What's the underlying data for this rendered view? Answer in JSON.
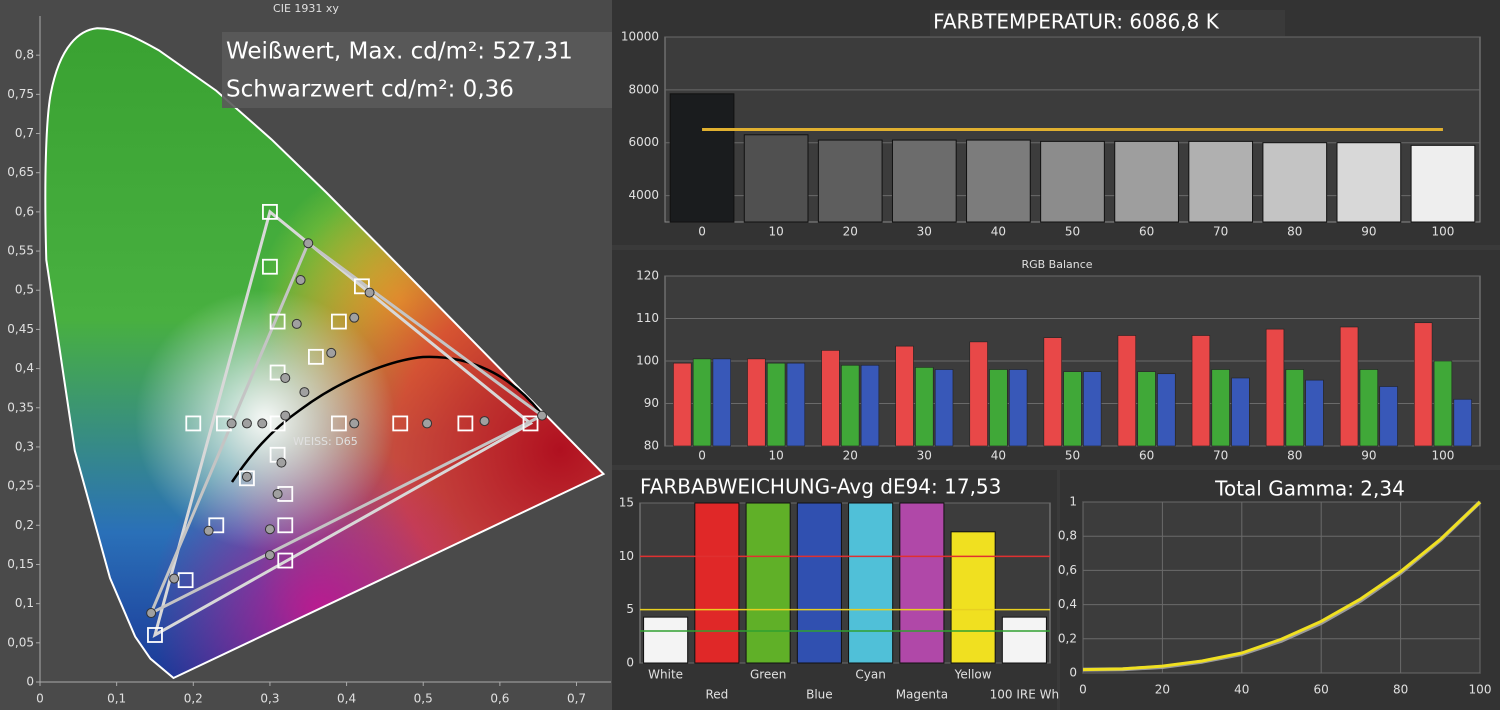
{
  "chart_data": [
    {
      "type": "scatter",
      "title": "CIE 1931 xy",
      "annotations": [
        "Weißwert, Max. cd/m²: 527,31",
        "Schwarzwert cd/m²: 0,36",
        "WEISS: D65"
      ],
      "xlim": [
        0,
        0.745
      ],
      "ylim": [
        0,
        0.85
      ],
      "xticks": [
        0,
        {
          "value": 0.1,
          "label": "0,1"
        },
        {
          "value": 0.2,
          "label": "0,2"
        },
        {
          "value": 0.3,
          "label": "0,3"
        },
        {
          "value": 0.4,
          "label": "0,4"
        },
        {
          "value": 0.5,
          "label": "0,5"
        },
        {
          "value": 0.6,
          "label": "0,6"
        },
        {
          "value": 0.7,
          "label": "0,7"
        }
      ],
      "yticks": [
        0,
        {
          "value": 0.05,
          "label": "0,05"
        },
        {
          "value": 0.1,
          "label": "0,1"
        },
        {
          "value": 0.15,
          "label": "0,15"
        },
        {
          "value": 0.2,
          "label": "0,2"
        },
        {
          "value": 0.25,
          "label": "0,25"
        },
        {
          "value": 0.3,
          "label": "0,3"
        },
        {
          "value": 0.35,
          "label": "0,35"
        },
        {
          "value": 0.4,
          "label": "0,4"
        },
        {
          "value": 0.45,
          "label": "0,45"
        },
        {
          "value": 0.5,
          "label": "0,5"
        },
        {
          "value": 0.55,
          "label": "0,55"
        },
        {
          "value": 0.6,
          "label": "0,6"
        },
        {
          "value": 0.65,
          "label": "0,65"
        },
        {
          "value": 0.7,
          "label": "0,7"
        },
        {
          "value": 0.75,
          "label": "0,75"
        },
        {
          "value": 0.8,
          "label": "0,8"
        }
      ],
      "polygons": [
        {
          "color": "#d8d8d8",
          "x": [
            0.64,
            0.3,
            0.15
          ],
          "y": [
            0.33,
            0.6,
            0.06
          ]
        },
        {
          "color": "#c4c4c4",
          "x": [
            0.655,
            0.35,
            0.145
          ],
          "y": [
            0.34,
            0.56,
            0.088
          ]
        }
      ],
      "series": [
        {
          "marker": "square",
          "color": "#ffffff",
          "x": [
            0.3,
            0.3,
            0.31,
            0.39,
            0.42,
            0.36,
            0.31,
            0.2,
            0.24,
            0.31,
            0.39,
            0.47,
            0.555,
            0.64,
            0.27,
            0.31,
            0.32,
            0.23,
            0.32,
            0.32,
            0.19,
            0.15
          ],
          "y": [
            0.6,
            0.53,
            0.46,
            0.46,
            0.505,
            0.415,
            0.395,
            0.33,
            0.33,
            0.33,
            0.33,
            0.33,
            0.33,
            0.33,
            0.26,
            0.29,
            0.24,
            0.2,
            0.2,
            0.155,
            0.13,
            0.06
          ]
        },
        {
          "marker": "circle",
          "color": "#a0a0a0",
          "x": [
            0.35,
            0.34,
            0.43,
            0.41,
            0.335,
            0.38,
            0.32,
            0.345,
            0.32,
            0.25,
            0.27,
            0.29,
            0.41,
            0.505,
            0.58,
            0.655,
            0.27,
            0.315,
            0.31,
            0.3,
            0.22,
            0.3,
            0.175,
            0.145
          ],
          "y": [
            0.56,
            0.513,
            0.497,
            0.465,
            0.457,
            0.42,
            0.388,
            0.37,
            0.34,
            0.33,
            0.33,
            0.33,
            0.33,
            0.33,
            0.333,
            0.34,
            0.262,
            0.28,
            0.24,
            0.195,
            0.193,
            0.162,
            0.132,
            0.088
          ]
        }
      ]
    },
    {
      "type": "bar",
      "title": "FARBTEMPERATUR: 6086,8 K",
      "categories": [
        "0",
        "10",
        "20",
        "30",
        "40",
        "50",
        "60",
        "70",
        "80",
        "90",
        "100"
      ],
      "values": [
        7850,
        6300,
        6100,
        6100,
        6100,
        6050,
        6050,
        6050,
        6000,
        6000,
        5900
      ],
      "colors": [
        "#1a1c1e",
        "#505050",
        "#5e5e5e",
        "#6c6c6c",
        "#7c7c7c",
        "#8c8c8c",
        "#9e9e9e",
        "#b0b0b0",
        "#c4c4c4",
        "#d8d8d8",
        "#eeeeee"
      ],
      "ylim": [
        3000,
        10000
      ],
      "yticks": [
        4000,
        6000,
        8000,
        10000
      ],
      "grid": true,
      "reference_lines": [
        {
          "value": 6500,
          "color": "#e0b030"
        }
      ]
    },
    {
      "type": "bar",
      "title": "RGB Balance",
      "categories": [
        "0",
        "10",
        "20",
        "30",
        "40",
        "50",
        "60",
        "70",
        "80",
        "90",
        "100"
      ],
      "series": [
        {
          "color": "#e84848",
          "values": [
            99.5,
            100.5,
            102.5,
            103.5,
            104.5,
            105.5,
            106,
            106,
            107.5,
            108,
            109
          ]
        },
        {
          "color": "#40a838",
          "values": [
            100.5,
            99.5,
            99,
            98.5,
            98,
            97.5,
            97.5,
            98,
            98,
            98,
            100
          ]
        },
        {
          "color": "#3858b8",
          "values": [
            100.5,
            99.5,
            99,
            98,
            98,
            97.5,
            97,
            96,
            95.5,
            94,
            91
          ]
        }
      ],
      "ylim": [
        80,
        120
      ],
      "yticks": [
        80,
        90,
        100,
        110,
        120
      ],
      "grid": true
    },
    {
      "type": "bar",
      "title": "FARBABWEICHUNG-Avg dE94: 17,53",
      "categories": [
        "White",
        "Red",
        "Green",
        "Blue",
        "Cyan",
        "Magenta",
        "Yellow",
        "100 IRE Wh"
      ],
      "values": [
        4.3,
        15,
        15,
        15,
        15,
        15,
        12.3,
        4.3
      ],
      "colors": [
        "#f4f4f4",
        "#e02828",
        "#60b028",
        "#3050b0",
        "#50c0d8",
        "#b048a8",
        "#f0e020",
        "#f4f4f4"
      ],
      "ylim": [
        0,
        15
      ],
      "yticks": [
        0,
        5,
        10,
        15
      ],
      "grid": true,
      "reference_lines": [
        {
          "value": 10,
          "color": "#e03030"
        },
        {
          "value": 5,
          "color": "#e8d020"
        },
        {
          "value": 3,
          "color": "#30a030"
        }
      ]
    },
    {
      "type": "line",
      "title": "Total Gamma: 2,34",
      "x": [
        0,
        10,
        20,
        30,
        40,
        50,
        60,
        70,
        80,
        90,
        100
      ],
      "series": [
        {
          "color": "#9a9a9a",
          "values": [
            0.02,
            0.022,
            0.035,
            0.066,
            0.111,
            0.189,
            0.293,
            0.425,
            0.586,
            0.777,
            1
          ]
        },
        {
          "color": "#f0e020",
          "values": [
            0.02,
            0.024,
            0.04,
            0.07,
            0.117,
            0.198,
            0.302,
            0.434,
            0.593,
            0.781,
            1
          ]
        }
      ],
      "xlim": [
        0,
        100
      ],
      "xticks": [
        0,
        20,
        40,
        60,
        80,
        100
      ],
      "ylim": [
        0,
        1
      ],
      "yticks": [
        0,
        {
          "value": 0.2,
          "label": "0,2"
        },
        {
          "value": 0.4,
          "label": "0,4"
        },
        {
          "value": 0.6,
          "label": "0,6"
        },
        {
          "value": 0.8,
          "label": "0,8"
        },
        1
      ],
      "grid": true
    }
  ]
}
